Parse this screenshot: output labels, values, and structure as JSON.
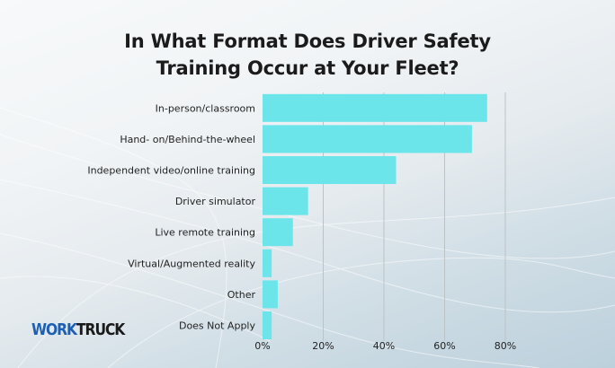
{
  "colors": {
    "bar": "#6be4ea",
    "grid": "#bcc3c7",
    "logo_primary": "#1e5fb4",
    "logo_secondary": "#1a1a1a"
  },
  "logo": {
    "part1": "WORK",
    "part2": "TRUCK"
  },
  "chart_data": {
    "type": "bar",
    "orientation": "horizontal",
    "title": "In What Format Does Driver Safety\nTraining Occur at Your Fleet?",
    "categories": [
      "In-person/classroom",
      "Hand- on/Behind-the-wheel",
      "Independent video/online training",
      "Driver simulator",
      "Live remote training",
      "Virtual/Augmented reality",
      "Other",
      "Does Not Apply"
    ],
    "values": [
      74,
      69,
      44,
      15,
      10,
      3,
      5,
      3
    ],
    "unit": "%",
    "xlim": [
      0,
      80
    ],
    "xticks": [
      0,
      20,
      40,
      60,
      80
    ],
    "xtick_labels": [
      "0%",
      "20%",
      "40%",
      "60%",
      "80%"
    ],
    "grid": true,
    "legend": "none"
  }
}
